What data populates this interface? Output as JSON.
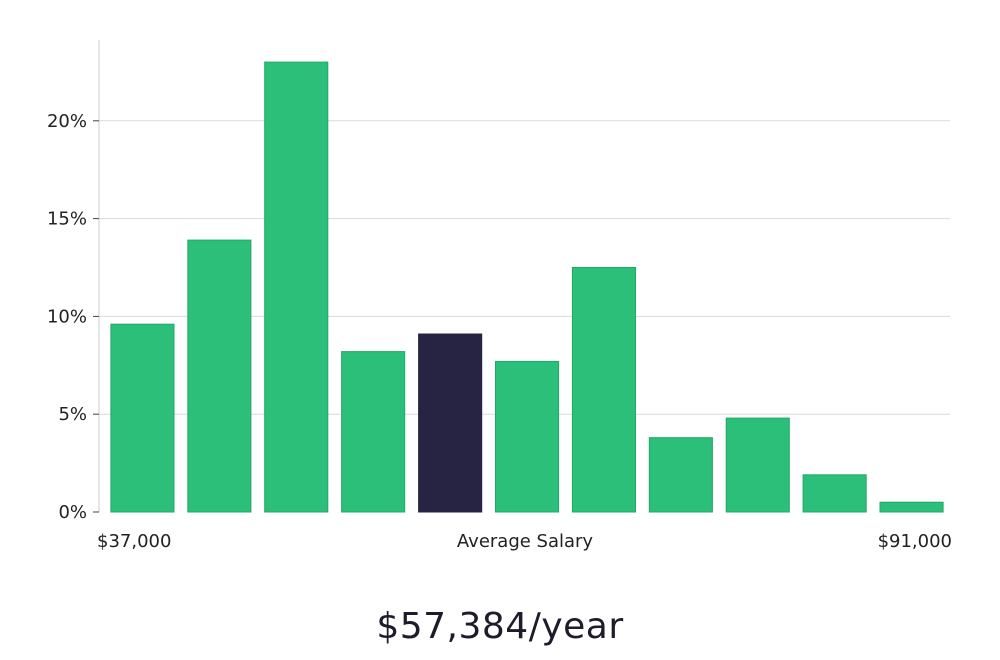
{
  "chart_data": {
    "type": "bar",
    "title": "",
    "ylabel": "",
    "xlabel": "Average Salary",
    "x_min_label": "$37,000",
    "x_max_label": "$91,000",
    "ylim": [
      0,
      25
    ],
    "y_ticks": [
      0,
      5,
      10,
      15,
      20
    ],
    "y_tick_labels": [
      "0%",
      "5%",
      "10%",
      "15%",
      "20%"
    ],
    "values": [
      9.6,
      13.9,
      23.0,
      8.2,
      9.1,
      7.7,
      12.5,
      3.8,
      4.8,
      1.9,
      0.5
    ],
    "highlight_index": 4,
    "grid": true,
    "colors": {
      "bar": "#2bbf79",
      "bar_stroke": "#22a867",
      "highlight": "#272443",
      "grid": "#d9d9d9",
      "axis": "#cccccc"
    }
  },
  "summary": {
    "salary_text": "$57,384/year"
  }
}
